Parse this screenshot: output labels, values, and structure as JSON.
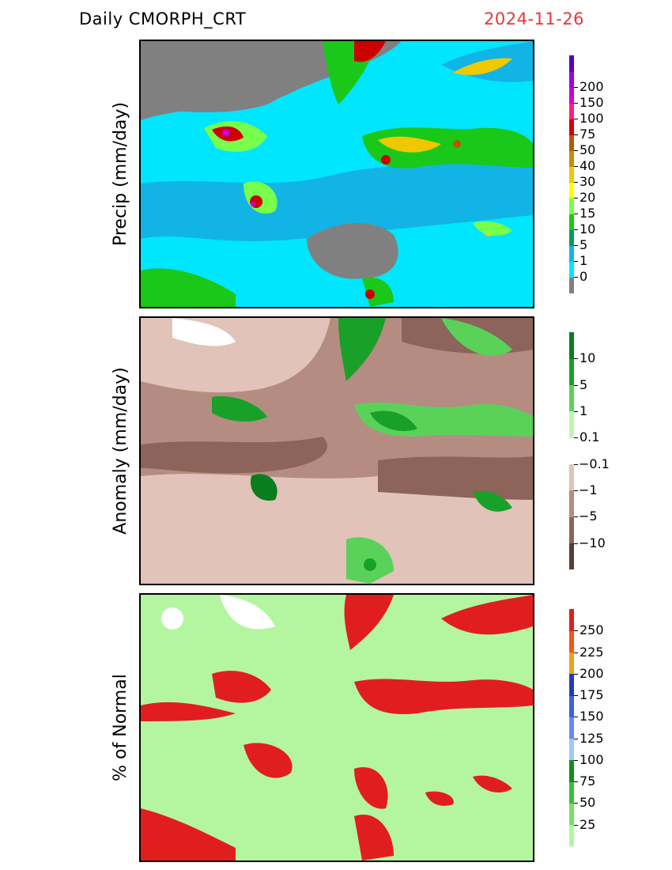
{
  "header": {
    "title": "Daily  CMORPH_CRT",
    "date": "2024-11-26",
    "date_color": "#e8363a"
  },
  "panels": [
    {
      "id": "precip",
      "ylabel": "Precip  (mm/day)",
      "legend": {
        "colors": [
          "#808080",
          "#00e6ff",
          "#12b4e6",
          "#0a9b5a",
          "#19c819",
          "#78ff4b",
          "#ffff00",
          "#f0c800",
          "#c88c00",
          "#b45a00",
          "#cd0000",
          "#ff1e7d",
          "#cc00cc",
          "#9b00e6",
          "#5a00b4"
        ],
        "labels": [
          "0",
          "1",
          "5",
          "10",
          "15",
          "20",
          "30",
          "40",
          "50",
          "75",
          "100",
          "150",
          "200"
        ]
      }
    },
    {
      "id": "anomaly",
      "ylabel": "Anomaly  (mm/day)",
      "legend": {
        "colors": [
          "#5a3c34",
          "#8c6459",
          "#b48c82",
          "#e1c3b9",
          "#ffffff",
          "#bff5b4",
          "#5ad25a",
          "#19a028",
          "#0a7d1e"
        ],
        "labels": [
          "−10",
          "−5",
          "−1",
          "−0.1",
          "0.1",
          "1",
          "5",
          "10"
        ]
      }
    },
    {
      "id": "pct_normal",
      "ylabel": "%  of  Normal",
      "legend": {
        "colors": [
          "#b4f5a0",
          "#78e164",
          "#3cbe3c",
          "#148c1e",
          "#a0c8ff",
          "#648cf0",
          "#3c64d2",
          "#1e3cb4",
          "#f0a01e",
          "#f05a14",
          "#e11e1e"
        ],
        "labels": [
          "25",
          "50",
          "75",
          "100",
          "125",
          "150",
          "175",
          "200",
          "225",
          "250"
        ]
      }
    }
  ]
}
